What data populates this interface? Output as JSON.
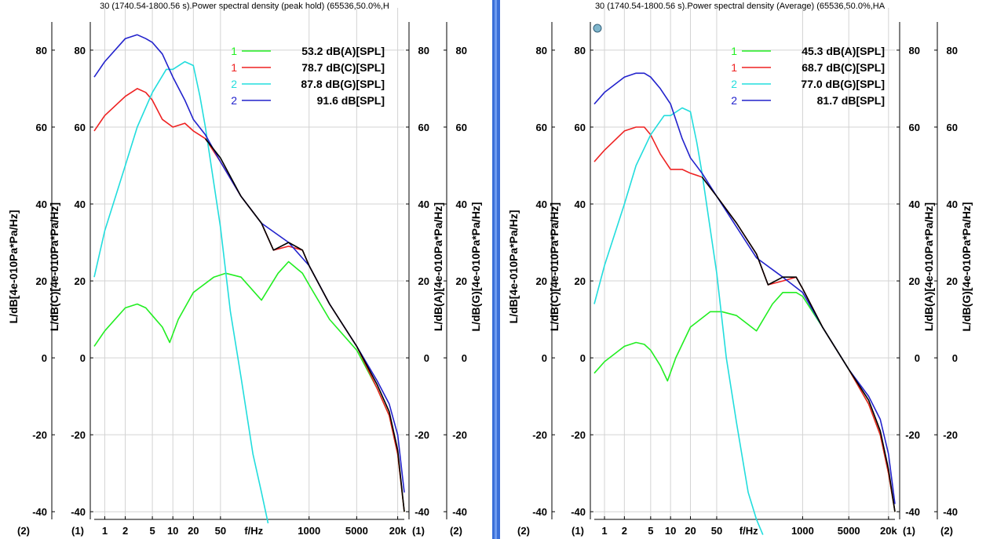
{
  "chart_data": [
    {
      "type": "line",
      "title": "30 (1740.54-1800.56 s).Power spectral density (peak hold) (65536,50.0%,H",
      "xlabel": "f/Hz",
      "x_scale": "log",
      "xlim": [
        0.7,
        25000
      ],
      "ylim": [
        -42,
        91
      ],
      "x_ticks": [
        1,
        2,
        5,
        10,
        20,
        50,
        1000,
        5000,
        "20k"
      ],
      "y_ticks": [
        80,
        60,
        40,
        20,
        0,
        -20,
        -40
      ],
      "ylabels": {
        "outer_left": "L/dB[4e-010Pa*Pa/Hz]",
        "inner_left": "L/dB(C)[4e-010Pa*Pa/Hz]",
        "inner_right": "L/dB(A)[4e-010Pa*Pa/Hz]",
        "outer_right": "L/dB(G)[4e-010Pa*Pa/Hz]"
      },
      "axis_markers": [
        "(2)",
        "(1)",
        "(1)",
        "(2)"
      ],
      "grid": true,
      "legend_position": "top-right",
      "legend": [
        {
          "key": "1",
          "value": "53.2 dB(A)[SPL]",
          "color": "#22ee22"
        },
        {
          "key": "1",
          "value": "78.7 dB(C)[SPL]",
          "color": "#ee2222"
        },
        {
          "key": "2",
          "value": "87.8 dB(G)[SPL]",
          "color": "#22dddd"
        },
        {
          "key": "2",
          "value": "91.6 dB[SPL]",
          "color": "#2222cc"
        }
      ],
      "series": [
        {
          "color": "#22ee22",
          "x": [
            0.7,
            1,
            2,
            3,
            4,
            5,
            7,
            9,
            12,
            20,
            40,
            60,
            100,
            200,
            350,
            500,
            800,
            1000,
            2000,
            5000,
            10000,
            15000,
            20000,
            25000
          ],
          "y": [
            3,
            7,
            13,
            14,
            13,
            11,
            8,
            4,
            10,
            17,
            21,
            22,
            21,
            15,
            22,
            25,
            22,
            19,
            10,
            2,
            -8,
            -15,
            -25,
            -40
          ]
        },
        {
          "color": "#ee2222",
          "x": [
            0.7,
            1,
            2,
            3,
            4,
            5,
            7,
            10,
            15,
            20,
            30,
            50,
            100,
            200,
            300,
            500,
            800,
            1000,
            2000,
            5000,
            10000,
            15000,
            20000,
            25000
          ],
          "y": [
            59,
            63,
            68,
            70,
            69,
            67,
            62,
            60,
            61,
            59,
            57,
            51,
            42,
            35,
            28,
            29,
            28,
            24,
            14,
            3,
            -8,
            -15,
            -25,
            -40
          ]
        },
        {
          "color": "#22dddd",
          "x": [
            0.7,
            1,
            2,
            3,
            5,
            8,
            10,
            15,
            20,
            25,
            30,
            50,
            70,
            100,
            150,
            200,
            250
          ],
          "y": [
            21,
            33,
            50,
            60,
            69,
            75,
            75,
            77,
            76,
            68,
            60,
            34,
            12,
            -5,
            -25,
            -35,
            -43
          ]
        },
        {
          "color": "#2222cc",
          "x": [
            0.7,
            1,
            2,
            3,
            4,
            5,
            7,
            10,
            15,
            20,
            30,
            50,
            100,
            200,
            500,
            1000,
            2000,
            5000,
            10000,
            15000,
            20000,
            25000
          ],
          "y": [
            73,
            77,
            83,
            84,
            83,
            82,
            79,
            73,
            67,
            62,
            58,
            51,
            42,
            35,
            30,
            24,
            14,
            3,
            -6,
            -12,
            -20,
            -35
          ]
        },
        {
          "color": "#000000",
          "x": [
            30,
            50,
            100,
            200,
            300,
            500,
            800,
            1000,
            2000,
            5000,
            10000,
            15000,
            20000,
            25000
          ],
          "y": [
            57,
            52,
            42,
            35,
            28,
            30,
            28,
            24,
            14,
            3,
            -7,
            -14,
            -24,
            -40
          ]
        }
      ]
    },
    {
      "type": "line",
      "title": "30 (1740.54-1800.56 s).Power spectral density (Average) (65536,50.0%,HA",
      "xlabel": "f/Hz",
      "x_scale": "log",
      "xlim": [
        0.7,
        25000
      ],
      "ylim": [
        -42,
        91
      ],
      "x_ticks": [
        1,
        2,
        5,
        10,
        20,
        50,
        1000,
        5000,
        "20k"
      ],
      "y_ticks": [
        80,
        60,
        40,
        20,
        0,
        -20,
        -40
      ],
      "ylabels": {
        "outer_left": "L/dB[4e-010Pa*Pa/Hz]",
        "inner_left": "L/dB(C)[4e-010Pa*Pa/Hz]",
        "inner_right": "L/dB(A)[4e-010Pa*Pa/Hz]",
        "outer_right": "L/dB(G)[4e-010Pa*Pa/Hz]"
      },
      "axis_markers": [
        "(2)",
        "(1)",
        "(1)",
        "(2)"
      ],
      "grid": true,
      "legend_position": "top-right",
      "legend": [
        {
          "key": "1",
          "value": "45.3 dB(A)[SPL]",
          "color": "#22ee22"
        },
        {
          "key": "1",
          "value": "68.7 dB(C)[SPL]",
          "color": "#ee2222"
        },
        {
          "key": "2",
          "value": "77.0 dB(G)[SPL]",
          "color": "#22dddd"
        },
        {
          "key": "2",
          "value": "81.7 dB[SPL]",
          "color": "#2222cc"
        }
      ],
      "series": [
        {
          "color": "#22ee22",
          "x": [
            0.7,
            1,
            2,
            3,
            4,
            5,
            7,
            9,
            12,
            20,
            40,
            60,
            100,
            200,
            350,
            500,
            800,
            1000,
            2000,
            5000,
            10000,
            15000,
            20000,
            25000
          ],
          "y": [
            -4,
            -1,
            3,
            4,
            3.5,
            2,
            -2,
            -6,
            0,
            8,
            12,
            12,
            11,
            7,
            14,
            17,
            17,
            16,
            8,
            -3,
            -12,
            -20,
            -30,
            -40
          ]
        },
        {
          "color": "#ee2222",
          "x": [
            0.7,
            1,
            2,
            3,
            4,
            5,
            7,
            10,
            15,
            20,
            30,
            50,
            100,
            200,
            300,
            500,
            800,
            1000,
            2000,
            5000,
            10000,
            15000,
            20000,
            25000
          ],
          "y": [
            51,
            54,
            59,
            60,
            60,
            58,
            53,
            49,
            49,
            48,
            47,
            42,
            35,
            27,
            19,
            20,
            21,
            18,
            8,
            -3,
            -12,
            -20,
            -30,
            -40
          ]
        },
        {
          "color": "#22dddd",
          "x": [
            0.7,
            1,
            2,
            3,
            5,
            8,
            10,
            15,
            20,
            25,
            30,
            50,
            70,
            100,
            150,
            200,
            250
          ],
          "y": [
            14,
            24,
            40,
            50,
            58,
            63,
            63,
            65,
            64,
            56,
            48,
            22,
            0,
            -17,
            -35,
            -42,
            -46
          ]
        },
        {
          "color": "#2222cc",
          "x": [
            0.7,
            1,
            2,
            3,
            4,
            5,
            7,
            10,
            15,
            20,
            30,
            50,
            100,
            200,
            500,
            1000,
            2000,
            5000,
            10000,
            15000,
            20000,
            25000
          ],
          "y": [
            66,
            69,
            73,
            74,
            74,
            73,
            70,
            66,
            57,
            52,
            48,
            42,
            34,
            26,
            21,
            17,
            8,
            -3,
            -10,
            -16,
            -25,
            -38
          ]
        },
        {
          "color": "#000000",
          "x": [
            30,
            50,
            100,
            200,
            300,
            500,
            800,
            1000,
            2000,
            5000,
            10000,
            15000,
            20000,
            25000
          ],
          "y": [
            47,
            42,
            35,
            27,
            19,
            21,
            21,
            18,
            8,
            -3,
            -11,
            -19,
            -29,
            -40
          ]
        }
      ]
    }
  ]
}
